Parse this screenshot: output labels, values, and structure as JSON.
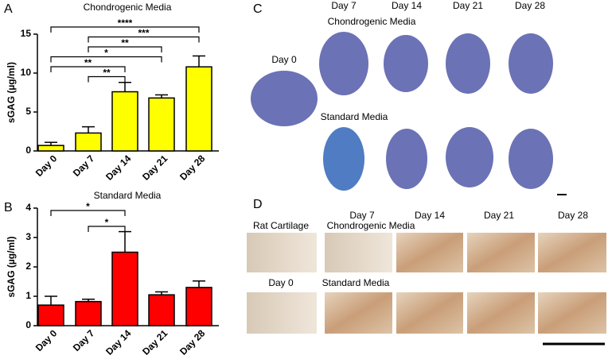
{
  "chart_data": [
    {
      "type": "bar",
      "panel_label": "A",
      "title": "Chondrogenic Media",
      "y_label": "sGAG (µg/ml)",
      "categories": [
        "Day 0",
        "Day 7",
        "Day 14",
        "Day 21",
        "Day 28"
      ],
      "values": [
        0.7,
        2.3,
        7.6,
        6.8,
        10.8
      ],
      "errors": [
        0.4,
        0.8,
        1.2,
        0.4,
        1.4
      ],
      "color": "#ffff00",
      "ylim": [
        0,
        15
      ],
      "yticks": [
        0,
        5,
        10,
        15
      ],
      "annotations": [
        {
          "label": "****",
          "from": "Day 0",
          "to": "Day 28"
        },
        {
          "label": "***",
          "from": "Day 7",
          "to": "Day 28"
        },
        {
          "label": "**",
          "from": "Day 7",
          "to": "Day 21"
        },
        {
          "label": "*",
          "from": "Day 0",
          "to": "Day 21"
        },
        {
          "label": "**",
          "from": "Day 0",
          "to": "Day 14"
        },
        {
          "label": "**",
          "from": "Day 7",
          "to": "Day 14"
        }
      ]
    },
    {
      "type": "bar",
      "panel_label": "B",
      "title": "Standard Media",
      "y_label": "sGAG (µg/ml)",
      "categories": [
        "Day 0",
        "Day 7",
        "Day 14",
        "Day 21",
        "Day 28"
      ],
      "values": [
        0.7,
        0.82,
        2.5,
        1.05,
        1.3
      ],
      "errors": [
        0.3,
        0.08,
        0.7,
        0.1,
        0.22
      ],
      "color": "#ff0000",
      "ylim": [
        0,
        4
      ],
      "yticks": [
        0,
        1,
        2,
        3,
        4
      ],
      "annotations": [
        {
          "label": "*",
          "from": "Day 0",
          "to": "Day 14"
        },
        {
          "label": "*",
          "from": "Day 7",
          "to": "Day 14"
        }
      ]
    }
  ],
  "panel_c": {
    "label": "C",
    "columns": [
      "Day 7",
      "Day 14",
      "Day 21",
      "Day 28"
    ],
    "rows": [
      "Chondrogenic Media",
      "Standard Media"
    ],
    "baseline": "Day 0"
  },
  "panel_d": {
    "label": "D",
    "columns": [
      "Day 7",
      "Day 14",
      "Day 21",
      "Day 28"
    ],
    "reference": "Rat Cartilage",
    "rows": [
      "Chondrogenic Media",
      "Standard Media"
    ],
    "baseline": "Day 0"
  }
}
